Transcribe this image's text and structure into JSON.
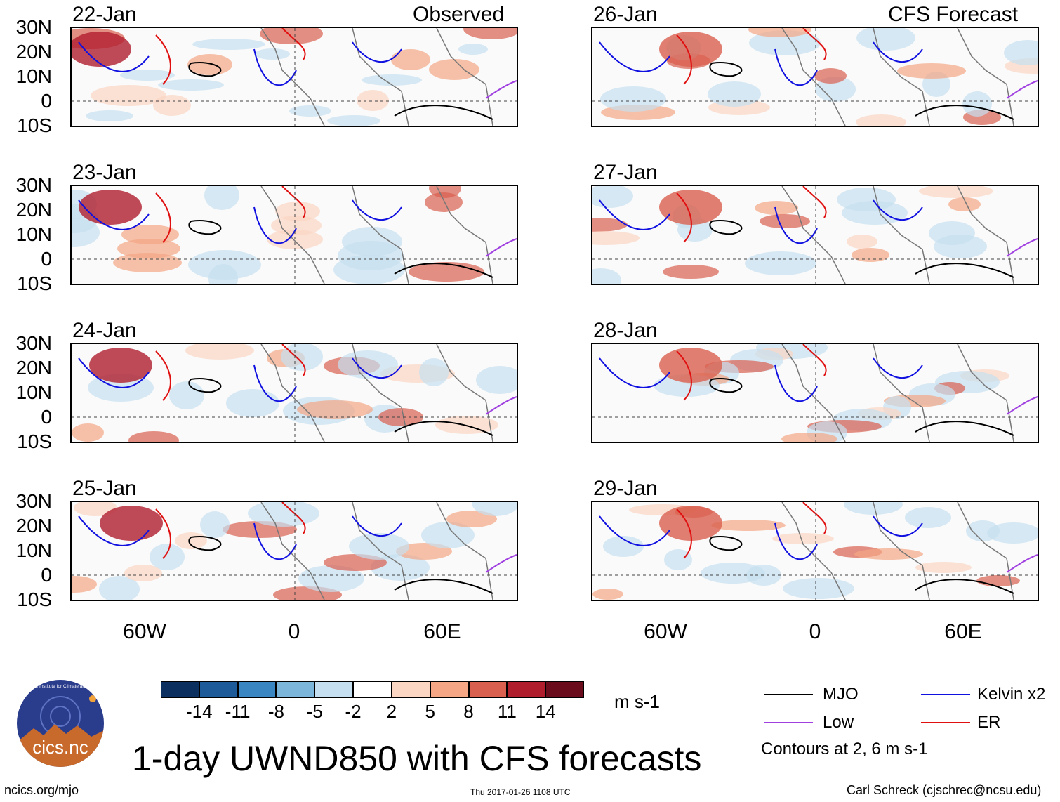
{
  "left_column_heading": "Observed",
  "right_column_heading": "CFS Forecast",
  "panels_observed": [
    {
      "date": "22-Jan"
    },
    {
      "date": "23-Jan"
    },
    {
      "date": "24-Jan"
    },
    {
      "date": "25-Jan"
    }
  ],
  "panels_forecast": [
    {
      "date": "26-Jan"
    },
    {
      "date": "27-Jan"
    },
    {
      "date": "28-Jan"
    },
    {
      "date": "29-Jan"
    }
  ],
  "lat_labels": [
    "30N",
    "20N",
    "10N",
    "0",
    "10S"
  ],
  "lon_labels": [
    "60W",
    "0",
    "60E"
  ],
  "colorbar": {
    "unit": "m s-1",
    "tick_labels": [
      "-14",
      "-11",
      "-8",
      "-5",
      "-2",
      "2",
      "5",
      "8",
      "11",
      "14"
    ],
    "colors": [
      "#0b2f5e",
      "#1c5a99",
      "#3a86c2",
      "#7db6db",
      "#c6dff0",
      "#ffffff",
      "#fbd6c3",
      "#f4a685",
      "#d9604f",
      "#b01e2e",
      "#6a0c1c"
    ]
  },
  "legend": {
    "items": [
      {
        "label": "MJO",
        "color": "#000000"
      },
      {
        "label": "Kelvin x2",
        "color": "#1010e0"
      },
      {
        "label": "Low",
        "color": "#a040e0"
      },
      {
        "label": "ER",
        "color": "#e01010"
      }
    ],
    "note": "Contours at 2, 6 m s-1"
  },
  "title": "1-day UWND850 with CFS forecasts",
  "logo_text": "cics.nc",
  "logo_arc_text": "Cooperative Institute for Climate and Satellites",
  "footer_left": "ncics.org/mjo",
  "footer_center": "Thu 2017-01-26 1108 UTC",
  "footer_right": "Carl Schreck (cjschrec@ncsu.edu)"
}
